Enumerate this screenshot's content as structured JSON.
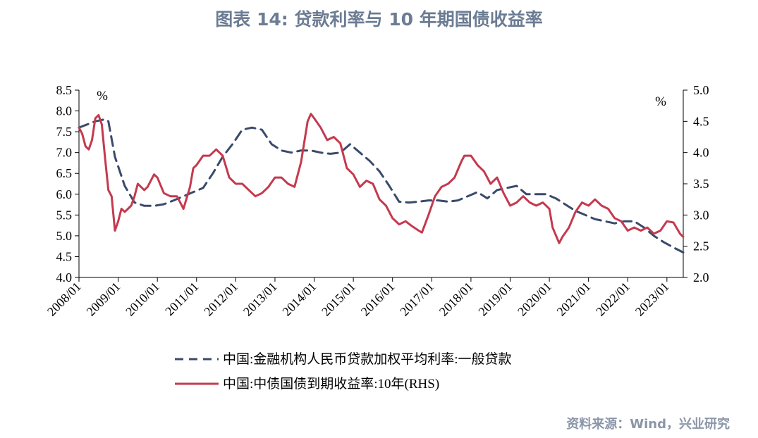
{
  "title": "图表 14: 贷款利率与 10 年期国债收益率",
  "source": "资料来源：Wind，兴业研究",
  "colors": {
    "title": "#6b7c93",
    "source": "#8a96a8",
    "loan_series": "#3b4a6b",
    "bond_series": "#c43a4e",
    "axis": "#000000"
  },
  "chart_data": {
    "type": "line",
    "y_left": {
      "ylim": [
        4.0,
        8.5
      ],
      "ticks": [
        "4.0",
        "4.5",
        "5.0",
        "5.5",
        "6.0",
        "6.5",
        "7.0",
        "7.5",
        "8.0",
        "8.5"
      ],
      "unit": "%"
    },
    "y_right": {
      "ylim": [
        2.0,
        5.0
      ],
      "ticks": [
        "2.0",
        "2.5",
        "3.0",
        "3.5",
        "4.0",
        "4.5",
        "5.0"
      ],
      "unit": "%"
    },
    "x_range": [
      "2008/01",
      "2023/06"
    ],
    "x_ticks": [
      "2008/01",
      "2009/01",
      "2010/01",
      "2011/01",
      "2012/01",
      "2013/01",
      "2014/01",
      "2015/01",
      "2016/01",
      "2017/01",
      "2018/01",
      "2019/01",
      "2020/01",
      "2021/01",
      "2022/01",
      "2023/01"
    ],
    "grid": false,
    "legend_position": "bottom",
    "series": [
      {
        "name": "中国:金融机构人民币贷款加权平均利率:一般贷款",
        "axis": "left",
        "style": "dashed",
        "x": [
          "2008/01",
          "2008/06",
          "2008/09",
          "2008/10",
          "2008/12",
          "2009/03",
          "2009/06",
          "2009/09",
          "2009/12",
          "2010/03",
          "2010/06",
          "2010/09",
          "2010/12",
          "2011/03",
          "2011/06",
          "2011/09",
          "2011/12",
          "2012/03",
          "2012/06",
          "2012/09",
          "2012/12",
          "2013/03",
          "2013/06",
          "2013/09",
          "2013/12",
          "2014/03",
          "2014/06",
          "2014/09",
          "2014/12",
          "2015/03",
          "2015/06",
          "2015/09",
          "2015/12",
          "2016/03",
          "2016/06",
          "2016/09",
          "2016/12",
          "2017/03",
          "2017/06",
          "2017/09",
          "2017/12",
          "2018/03",
          "2018/06",
          "2018/09",
          "2018/12",
          "2019/03",
          "2019/06",
          "2019/09",
          "2019/12",
          "2020/03",
          "2020/06",
          "2020/09",
          "2020/12",
          "2021/03",
          "2021/06",
          "2021/09",
          "2021/12",
          "2022/03",
          "2022/06",
          "2022/09",
          "2022/12",
          "2023/03",
          "2023/06"
        ],
        "values": [
          7.6,
          7.75,
          7.8,
          7.75,
          6.9,
          6.2,
          5.8,
          5.72,
          5.72,
          5.76,
          5.85,
          5.95,
          6.05,
          6.15,
          6.5,
          6.9,
          7.2,
          7.55,
          7.6,
          7.55,
          7.2,
          7.05,
          7.0,
          7.05,
          7.05,
          7.0,
          6.97,
          7.0,
          7.2,
          7.0,
          6.8,
          6.55,
          6.2,
          5.82,
          5.8,
          5.82,
          5.85,
          5.85,
          5.82,
          5.85,
          5.95,
          6.05,
          5.9,
          6.1,
          6.15,
          6.2,
          6.0,
          6.0,
          6.0,
          5.9,
          5.75,
          5.6,
          5.5,
          5.4,
          5.35,
          5.3,
          5.35,
          5.35,
          5.2,
          5.0,
          4.85,
          4.72,
          4.6
        ]
      },
      {
        "name": "中国:中债国债到期收益率:10年(RHS)",
        "axis": "right",
        "style": "solid",
        "x": [
          "2008/01",
          "2008/02",
          "2008/03",
          "2008/04",
          "2008/05",
          "2008/06",
          "2008/07",
          "2008/08",
          "2008/09",
          "2008/10",
          "2008/11",
          "2008/12",
          "2009/01",
          "2009/02",
          "2009/03",
          "2009/04",
          "2009/05",
          "2009/06",
          "2009/07",
          "2009/08",
          "2009/09",
          "2009/10",
          "2009/11",
          "2009/12",
          "2010/01",
          "2010/03",
          "2010/05",
          "2010/07",
          "2010/09",
          "2010/11",
          "2010/12",
          "2011/01",
          "2011/03",
          "2011/05",
          "2011/07",
          "2011/09",
          "2011/11",
          "2012/01",
          "2012/03",
          "2012/05",
          "2012/07",
          "2012/09",
          "2012/11",
          "2013/01",
          "2013/03",
          "2013/05",
          "2013/07",
          "2013/09",
          "2013/11",
          "2013/12",
          "2014/01",
          "2014/03",
          "2014/05",
          "2014/07",
          "2014/09",
          "2014/11",
          "2015/01",
          "2015/03",
          "2015/05",
          "2015/07",
          "2015/09",
          "2015/11",
          "2016/01",
          "2016/03",
          "2016/05",
          "2016/07",
          "2016/09",
          "2016/10",
          "2016/12",
          "2017/02",
          "2017/04",
          "2017/06",
          "2017/08",
          "2017/10",
          "2017/11",
          "2018/01",
          "2018/03",
          "2018/05",
          "2018/07",
          "2018/09",
          "2018/11",
          "2019/01",
          "2019/03",
          "2019/05",
          "2019/07",
          "2019/09",
          "2019/11",
          "2020/01",
          "2020/02",
          "2020/04",
          "2020/05",
          "2020/07",
          "2020/09",
          "2020/11",
          "2021/01",
          "2021/03",
          "2021/05",
          "2021/07",
          "2021/09",
          "2021/11",
          "2022/01",
          "2022/03",
          "2022/05",
          "2022/07",
          "2022/09",
          "2022/11",
          "2023/01",
          "2023/03",
          "2023/05",
          "2023/06"
        ],
        "values": [
          4.4,
          4.3,
          4.1,
          4.05,
          4.2,
          4.55,
          4.6,
          4.45,
          3.9,
          3.4,
          3.3,
          2.75,
          2.9,
          3.1,
          3.05,
          3.1,
          3.15,
          3.3,
          3.5,
          3.45,
          3.4,
          3.45,
          3.55,
          3.65,
          3.6,
          3.35,
          3.3,
          3.3,
          3.1,
          3.45,
          3.75,
          3.8,
          3.95,
          3.95,
          4.05,
          3.95,
          3.6,
          3.5,
          3.5,
          3.4,
          3.3,
          3.35,
          3.45,
          3.6,
          3.6,
          3.5,
          3.45,
          3.85,
          4.5,
          4.62,
          4.55,
          4.4,
          4.2,
          4.25,
          4.15,
          3.75,
          3.65,
          3.45,
          3.55,
          3.5,
          3.25,
          3.15,
          2.95,
          2.85,
          2.9,
          2.82,
          2.75,
          2.72,
          3.0,
          3.3,
          3.45,
          3.5,
          3.6,
          3.85,
          3.95,
          3.95,
          3.8,
          3.7,
          3.5,
          3.6,
          3.35,
          3.15,
          3.2,
          3.3,
          3.2,
          3.15,
          3.2,
          3.1,
          2.8,
          2.55,
          2.65,
          2.8,
          3.05,
          3.2,
          3.15,
          3.25,
          3.15,
          3.1,
          2.95,
          2.9,
          2.75,
          2.8,
          2.75,
          2.8,
          2.7,
          2.75,
          2.9,
          2.88,
          2.7,
          2.65
        ]
      }
    ]
  }
}
